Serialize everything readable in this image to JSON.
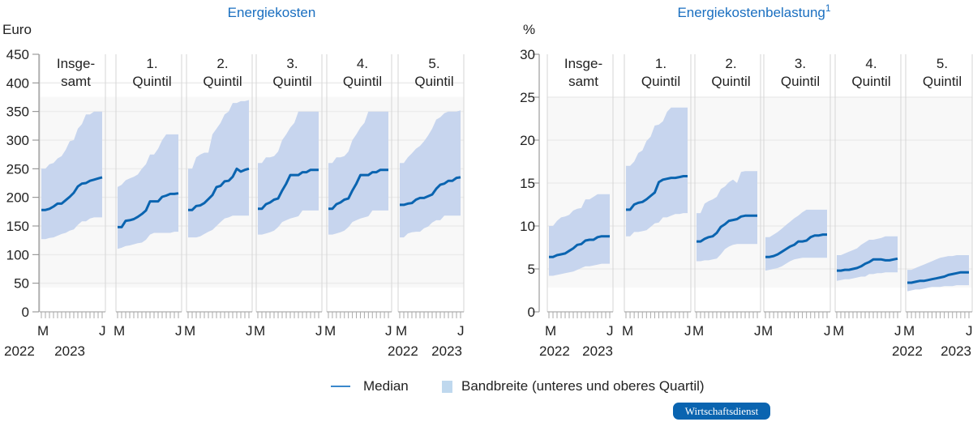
{
  "colors": {
    "median": "#0a64b0",
    "band": "#c7d5ee",
    "title": "#1a6fc0",
    "legend_band": "#bfd8ee"
  },
  "legend": {
    "median": "Median",
    "band": "Bandbreite (unteres und oberes Quartil)"
  },
  "badge": "Wirtschaftsdienst",
  "chart_data": [
    {
      "type": "area",
      "title": "Energiekosten",
      "ylabel": "Euro",
      "ylim": [
        0,
        450
      ],
      "yticks": [
        0,
        50,
        100,
        150,
        200,
        250,
        300,
        350,
        400,
        450
      ],
      "x_start_label": "M",
      "x_end_label": "J",
      "years": [
        "2022",
        "2023"
      ],
      "x": [
        "2022-03",
        "2022-04",
        "2022-05",
        "2022-06",
        "2022-07",
        "2022-08",
        "2022-09",
        "2022-10",
        "2022-11",
        "2022-12",
        "2023-01",
        "2023-02",
        "2023-03",
        "2023-04",
        "2023-05",
        "2023-06"
      ],
      "panels": [
        {
          "title": [
            "Insge-",
            "samt"
          ],
          "median": [
            178,
            178,
            180,
            184,
            189,
            189,
            195,
            201,
            208,
            219,
            224,
            225,
            229,
            231,
            233,
            235
          ],
          "lower": [
            127,
            127,
            129,
            130,
            133,
            136,
            138,
            142,
            144,
            152,
            158,
            158,
            163,
            165,
            165,
            165
          ],
          "upper": [
            250,
            250,
            258,
            260,
            268,
            272,
            283,
            298,
            300,
            320,
            328,
            345,
            345,
            350,
            350,
            350
          ]
        },
        {
          "title": [
            "1.",
            "Quintil"
          ],
          "median": [
            148,
            148,
            159,
            160,
            162,
            166,
            171,
            177,
            193,
            193,
            193,
            201,
            203,
            206,
            206,
            207
          ],
          "lower": [
            110,
            112,
            115,
            116,
            118,
            120,
            121,
            126,
            135,
            138,
            138,
            138,
            138,
            138,
            140,
            140
          ],
          "upper": [
            218,
            222,
            230,
            233,
            236,
            240,
            250,
            258,
            275,
            275,
            285,
            300,
            310,
            310,
            310,
            310
          ]
        },
        {
          "title": [
            "2.",
            "Quintil"
          ],
          "median": [
            178,
            178,
            185,
            186,
            190,
            197,
            204,
            218,
            220,
            228,
            229,
            236,
            250,
            245,
            248,
            250
          ],
          "lower": [
            130,
            130,
            130,
            132,
            136,
            140,
            143,
            150,
            157,
            163,
            165,
            168,
            168,
            168,
            168,
            168
          ],
          "upper": [
            250,
            250,
            270,
            275,
            278,
            278,
            310,
            320,
            330,
            345,
            350,
            365,
            365,
            368,
            368,
            370
          ]
        },
        {
          "title": [
            "3.",
            "Quintil"
          ],
          "median": [
            180,
            180,
            188,
            191,
            196,
            198,
            212,
            224,
            239,
            239,
            239,
            244,
            244,
            248,
            248,
            248
          ],
          "lower": [
            135,
            135,
            137,
            139,
            142,
            148,
            157,
            160,
            163,
            165,
            167,
            177,
            177,
            177,
            177,
            177
          ],
          "upper": [
            260,
            260,
            270,
            270,
            272,
            280,
            300,
            310,
            322,
            330,
            350,
            350,
            350,
            350,
            350,
            350
          ]
        },
        {
          "title": [
            "4.",
            "Quintil"
          ],
          "median": [
            180,
            180,
            188,
            191,
            196,
            198,
            212,
            224,
            239,
            239,
            239,
            244,
            244,
            248,
            248,
            248
          ],
          "lower": [
            135,
            135,
            137,
            139,
            142,
            148,
            157,
            160,
            163,
            165,
            167,
            177,
            177,
            177,
            177,
            177
          ],
          "upper": [
            260,
            260,
            270,
            270,
            272,
            280,
            300,
            310,
            322,
            330,
            350,
            350,
            350,
            350,
            350,
            350
          ]
        },
        {
          "title": [
            "5.",
            "Quintil"
          ],
          "median": [
            187,
            187,
            189,
            190,
            196,
            199,
            199,
            202,
            205,
            215,
            222,
            224,
            229,
            229,
            234,
            235
          ],
          "lower": [
            130,
            130,
            137,
            139,
            140,
            140,
            146,
            149,
            156,
            160,
            160,
            168,
            168,
            168,
            168,
            168
          ],
          "upper": [
            260,
            260,
            270,
            277,
            285,
            290,
            298,
            308,
            320,
            336,
            340,
            347,
            350,
            350,
            350,
            352
          ]
        }
      ]
    },
    {
      "type": "area",
      "title": "Energiekostenbelastung",
      "title_sup": "1",
      "ylabel": "%",
      "ylim": [
        0,
        30
      ],
      "yticks": [
        0,
        5,
        10,
        15,
        20,
        25,
        30
      ],
      "x_start_label": "M",
      "x_end_label": "J",
      "years": [
        "2022",
        "2023"
      ],
      "x": [
        "2022-03",
        "2022-04",
        "2022-05",
        "2022-06",
        "2022-07",
        "2022-08",
        "2022-09",
        "2022-10",
        "2022-11",
        "2022-12",
        "2023-01",
        "2023-02",
        "2023-03",
        "2023-04",
        "2023-05",
        "2023-06"
      ],
      "panels": [
        {
          "title": [
            "Insge-",
            "samt"
          ],
          "median": [
            6.4,
            6.4,
            6.6,
            6.7,
            6.8,
            7.1,
            7.4,
            7.8,
            7.9,
            8.3,
            8.4,
            8.4,
            8.7,
            8.8,
            8.8,
            8.8
          ],
          "lower": [
            4.2,
            4.2,
            4.3,
            4.4,
            4.5,
            4.6,
            4.7,
            4.9,
            5.1,
            5.3,
            5.3,
            5.4,
            5.5,
            5.6,
            5.6,
            5.6
          ],
          "upper": [
            10,
            10,
            10.6,
            11,
            11.1,
            11.3,
            11.8,
            12,
            12.1,
            13.1,
            13.1,
            13.4,
            13.7,
            13.7,
            13.7,
            13.7
          ]
        },
        {
          "title": [
            "1.",
            "Quintil"
          ],
          "median": [
            11.9,
            11.9,
            12.5,
            12.7,
            12.8,
            13.1,
            13.5,
            13.9,
            15.1,
            15.4,
            15.5,
            15.6,
            15.6,
            15.7,
            15.8,
            15.8
          ],
          "lower": [
            8.8,
            8.8,
            9.3,
            9.3,
            9.4,
            9.5,
            9.9,
            10.3,
            10.4,
            11,
            11,
            11.2,
            11.4,
            11.4,
            11.5,
            11.5
          ],
          "upper": [
            17,
            17,
            17.5,
            18.5,
            18.8,
            19.9,
            20.4,
            21.7,
            21.8,
            22.2,
            23.3,
            23.8,
            23.8,
            23.8,
            23.8,
            23.8
          ]
        },
        {
          "title": [
            "2.",
            "Quintil"
          ],
          "median": [
            8.2,
            8.2,
            8.5,
            8.7,
            8.8,
            9.2,
            9.9,
            10.2,
            10.6,
            10.7,
            10.8,
            11.1,
            11.2,
            11.2,
            11.2,
            11.2
          ],
          "lower": [
            5.9,
            5.9,
            6,
            6,
            6.1,
            6.2,
            6.7,
            7.3,
            7.6,
            7.8,
            7.9,
            7.9,
            7.9,
            7.9,
            7.9,
            7.9
          ],
          "upper": [
            11.5,
            11.5,
            12.6,
            12.9,
            13.1,
            13.4,
            14.3,
            14.6,
            15.1,
            15.4,
            15,
            16.3,
            16.4,
            16.4,
            16.4,
            16.4
          ]
        },
        {
          "title": [
            "3.",
            "Quintil"
          ],
          "median": [
            6.4,
            6.4,
            6.5,
            6.7,
            7,
            7.3,
            7.6,
            7.8,
            8.2,
            8.2,
            8.3,
            8.7,
            8.9,
            8.9,
            9,
            9
          ],
          "lower": [
            4.8,
            4.9,
            5,
            5.1,
            5.3,
            5.6,
            5.9,
            6.1,
            6.2,
            6.3,
            6.3,
            6.3,
            6.3,
            6.3,
            6.3,
            6.3
          ],
          "upper": [
            8.7,
            8.7,
            9,
            9.3,
            9.7,
            10.1,
            10.5,
            10.9,
            11.2,
            11.6,
            11.9,
            11.9,
            11.9,
            11.9,
            11.9,
            11.9
          ]
        },
        {
          "title": [
            "4.",
            "Quintil"
          ],
          "median": [
            4.8,
            4.8,
            4.9,
            4.9,
            5,
            5.1,
            5.3,
            5.6,
            5.8,
            6.1,
            6.1,
            6.1,
            6,
            6,
            6.1,
            6.2
          ],
          "lower": [
            3.6,
            3.7,
            3.8,
            3.8,
            3.9,
            4,
            4.1,
            4.1,
            4.4,
            4.4,
            4.5,
            4.5,
            4.6,
            4.6,
            4.6,
            4.6
          ],
          "upper": [
            6.6,
            6.6,
            6.8,
            7,
            7.2,
            7.4,
            7.8,
            8.1,
            8.4,
            8.4,
            8.5,
            8.6,
            8.8,
            8.8,
            8.8,
            8.8
          ]
        },
        {
          "title": [
            "5.",
            "Quintil"
          ],
          "median": [
            3.4,
            3.4,
            3.5,
            3.6,
            3.6,
            3.7,
            3.8,
            3.9,
            4,
            4.1,
            4.3,
            4.4,
            4.5,
            4.6,
            4.6,
            4.6
          ],
          "lower": [
            2.4,
            2.5,
            2.6,
            2.6,
            2.7,
            2.8,
            2.9,
            2.9,
            2.9,
            3,
            3,
            3,
            3.1,
            3.1,
            3.1,
            3.1
          ],
          "upper": [
            4.9,
            4.9,
            5.1,
            5.3,
            5.5,
            5.7,
            5.9,
            6.1,
            6.3,
            6.4,
            6.5,
            6.5,
            6.6,
            6.6,
            6.6,
            6.6
          ]
        }
      ]
    }
  ]
}
